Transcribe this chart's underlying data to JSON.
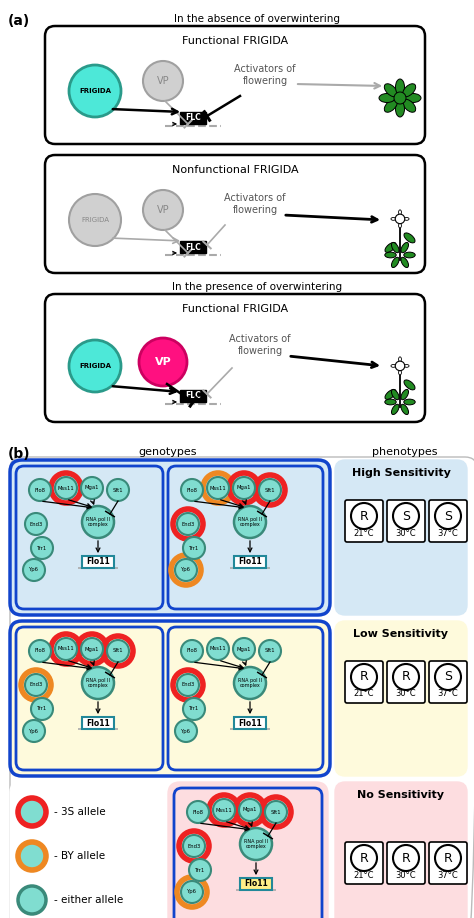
{
  "fig_width": 4.74,
  "fig_height": 9.18,
  "bg_color": "#ffffff",
  "teal_fill": "#4DE8D8",
  "teal_edge": "#2A9A8A",
  "gray_fill": "#D0D0D0",
  "gray_edge": "#A0A0A0",
  "magenta_fill": "#FF1080",
  "magenta_edge": "#CC0060",
  "green_color": "#228B22",
  "node_teal_fill": "#80DDD0",
  "node_teal_edge": "#3A8A7A",
  "node_red_edge": "#EE2222",
  "node_orange_edge": "#EE8822",
  "blue_stroke": "#1144CC",
  "light_blue_bg": "#D5E8F5",
  "light_yellow_bg": "#FEFADC",
  "light_pink_bg": "#FDDDE0",
  "white": "#FFFFFF",
  "black": "#000000",
  "dark_gray_arrow": "#AAAAAA"
}
